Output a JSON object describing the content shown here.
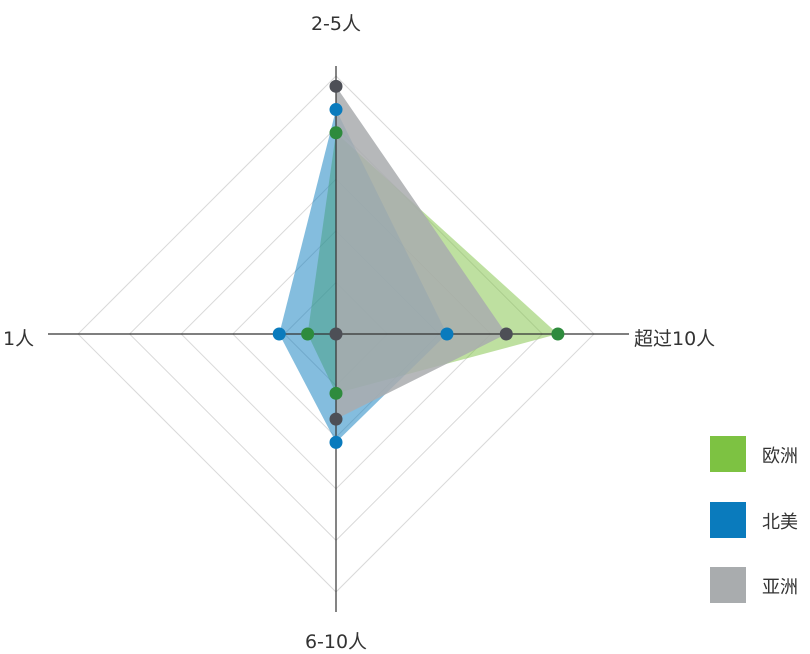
{
  "chart_data": {
    "type": "radar",
    "axes": [
      "2-5人",
      "超过10人",
      "6-10人",
      "1人"
    ],
    "rmax": 5,
    "rings": 5,
    "series": [
      {
        "name": "欧洲",
        "values": [
          3.9,
          4.3,
          1.15,
          0.55
        ],
        "fill": "#7dc242",
        "fill_opacity": 0.5,
        "point_color": "#2e8b3d"
      },
      {
        "name": "北美",
        "values": [
          4.35,
          2.15,
          2.1,
          1.1
        ],
        "fill": "#0a7bbd",
        "fill_opacity": 0.5,
        "point_color": "#0a7bbd"
      },
      {
        "name": "亚洲",
        "values": [
          4.8,
          3.3,
          1.65,
          0.0
        ],
        "fill": "#a9acae",
        "fill_opacity": 0.85,
        "point_color": "#4d4f56"
      }
    ],
    "legend": [
      {
        "label": "欧洲",
        "color": "#7dc242"
      },
      {
        "label": "北美",
        "color": "#0a7bbd"
      },
      {
        "label": "亚洲",
        "color": "#a9acae"
      }
    ],
    "colors": {
      "grid": "#d9d9d9",
      "axis": "#333333"
    }
  }
}
